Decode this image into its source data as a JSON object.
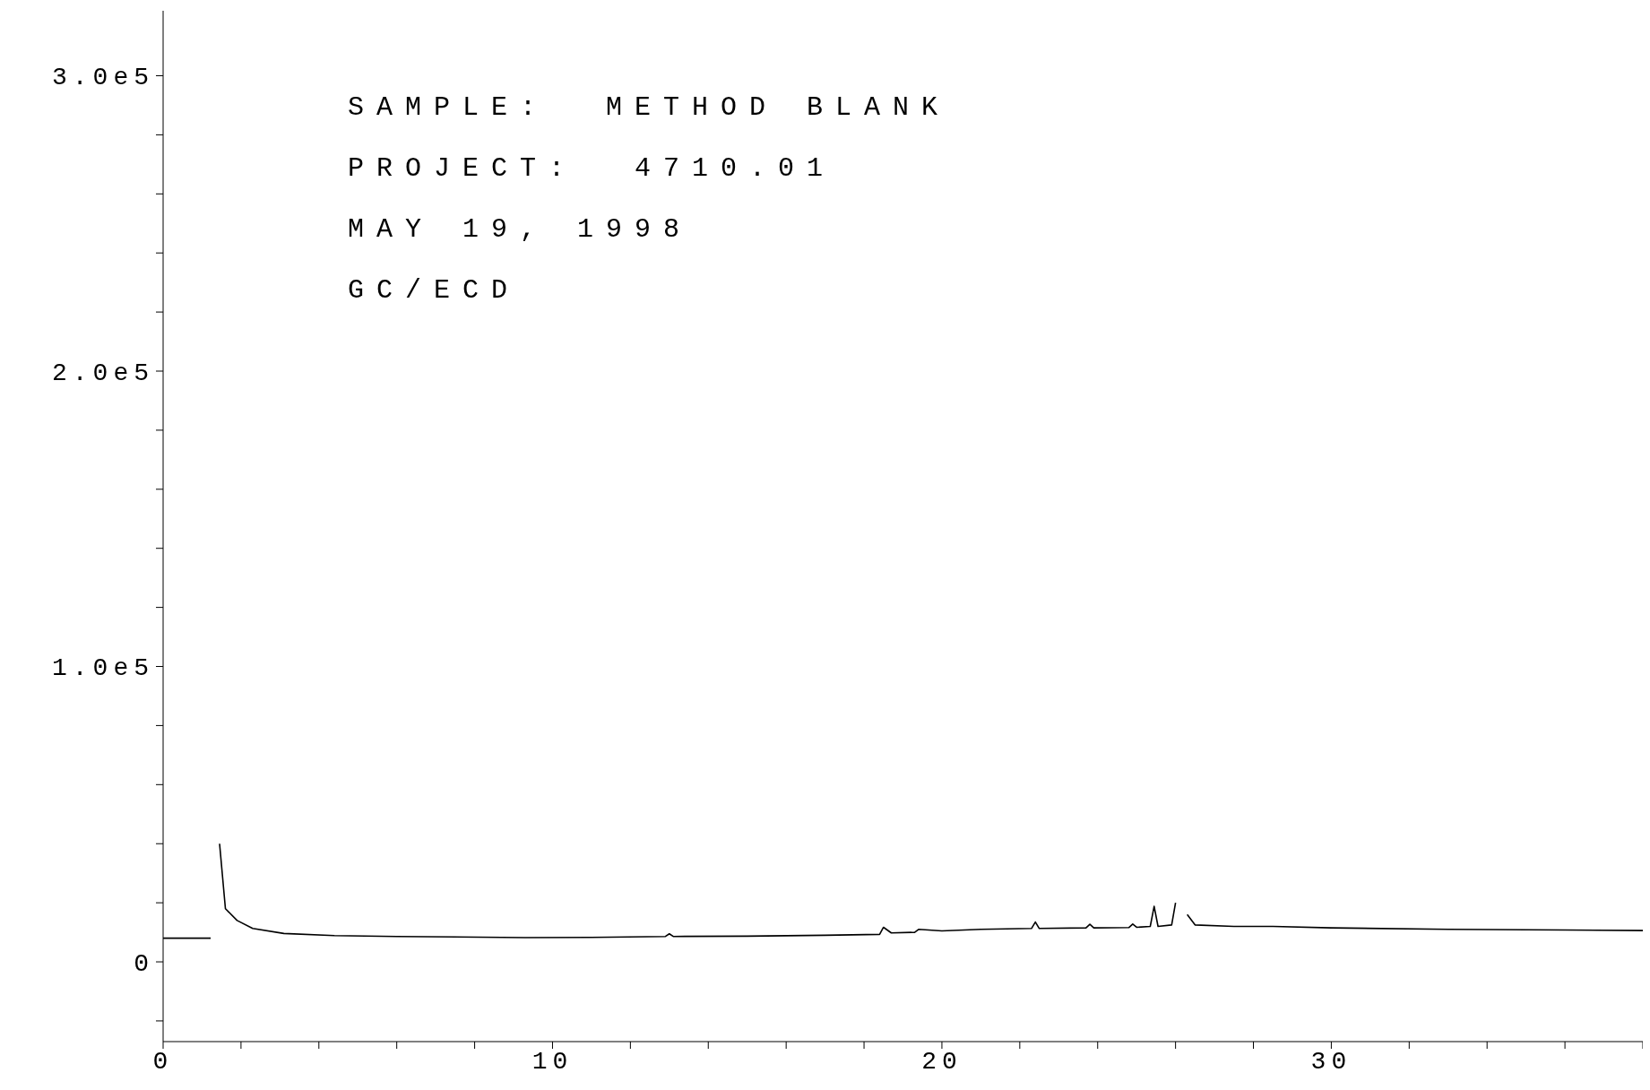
{
  "chart_data": {
    "type": "line",
    "annotations": [
      "SAMPLE:  METHOD BLANK",
      "PROJECT:  4710.01",
      "MAY 19, 1998",
      "GC/ECD"
    ],
    "x": [
      0,
      1.22,
      1.25,
      1.38,
      1.45,
      1.6,
      1.9,
      2.3,
      3.1,
      4.4,
      6,
      9.3,
      11,
      12.9,
      13,
      13.1,
      15,
      17,
      18.4,
      18.5,
      18.7,
      19.3,
      19.4,
      20,
      21,
      22.3,
      22.4,
      22.5,
      23.7,
      23.8,
      23.9,
      24.8,
      24.9,
      25,
      25.35,
      25.45,
      25.55,
      25.9,
      26.0,
      26.05,
      26.2,
      26.3,
      26.5,
      27.5,
      28.5,
      30,
      33,
      36,
      38
    ],
    "series": [
      {
        "color": "#000000",
        "values": [
          8000,
          8000,
          null,
          null,
          40000,
          18000,
          14000,
          11300,
          9600,
          8900,
          8600,
          8200,
          8300,
          8600,
          9500,
          8600,
          8700,
          9000,
          9300,
          11700,
          9800,
          10000,
          11000,
          10500,
          11000,
          11300,
          13500,
          11300,
          11500,
          12700,
          11500,
          11600,
          12800,
          11700,
          12000,
          18800,
          12000,
          12500,
          20000,
          null,
          null,
          16000,
          12500,
          12000,
          12000,
          11500,
          11000,
          10800,
          10600
        ]
      }
    ],
    "xlim": [
      0,
      38
    ],
    "ylim": [
      -27000,
      322000
    ],
    "xticks": [
      0,
      {
        "value": 2,
        "label": null
      },
      {
        "value": 4,
        "label": null
      },
      {
        "value": 6,
        "label": null
      },
      {
        "value": 8,
        "label": null
      },
      10,
      {
        "value": 12,
        "label": null
      },
      {
        "value": 14,
        "label": null
      },
      {
        "value": 16,
        "label": null
      },
      {
        "value": 18,
        "label": null
      },
      20,
      {
        "value": 22,
        "label": null
      },
      {
        "value": 24,
        "label": null
      },
      {
        "value": 26,
        "label": null
      },
      {
        "value": 28,
        "label": null
      },
      30,
      {
        "value": 32,
        "label": null
      },
      {
        "value": 34,
        "label": null
      },
      {
        "value": 36,
        "label": null
      },
      {
        "value": 38,
        "label": null
      }
    ],
    "yticks": [
      {
        "value": -20000,
        "label": null
      },
      0,
      {
        "value": 20000,
        "label": null
      },
      {
        "value": 40000,
        "label": null
      },
      {
        "value": 60000,
        "label": null
      },
      {
        "value": 80000,
        "label": null
      },
      {
        "value": 100000,
        "label": "1.0e5"
      },
      {
        "value": 120000,
        "label": null
      },
      {
        "value": 140000,
        "label": null
      },
      {
        "value": 160000,
        "label": null
      },
      {
        "value": 180000,
        "label": null
      },
      {
        "value": 200000,
        "label": "2.0e5"
      },
      {
        "value": 220000,
        "label": null
      },
      {
        "value": 240000,
        "label": null
      },
      {
        "value": 260000,
        "label": null
      },
      {
        "value": 280000,
        "label": null
      },
      {
        "value": 300000,
        "label": "3.0e5"
      }
    ],
    "grid": false,
    "marker": "none",
    "line_style": "solid"
  }
}
